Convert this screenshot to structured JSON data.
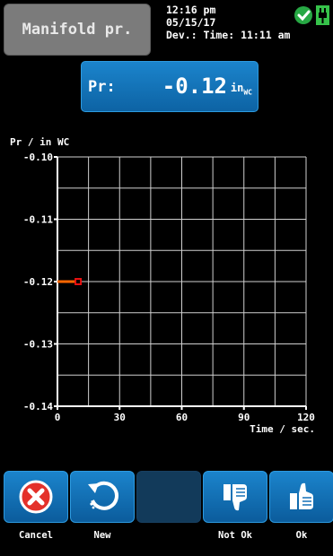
{
  "header": {
    "title": "Manifold pr.",
    "time": "12:16 pm",
    "date": "05/15/17",
    "dev_time": "Dev.: Time: 11:11 am"
  },
  "reading": {
    "label": "Pr:",
    "value": "-0.12",
    "unit_main": "in",
    "unit_sub": "WC"
  },
  "chart_data": {
    "type": "line",
    "ylabel": "Pr / in WC",
    "xlabel": "Time / sec.",
    "xlim": [
      0,
      120
    ],
    "ylim": [
      -0.14,
      -0.1
    ],
    "x_ticks": [
      "0",
      "30",
      "60",
      "90",
      "120"
    ],
    "y_ticks": [
      "-0.10",
      "-0.11",
      "-0.12",
      "-0.13",
      "-0.14"
    ],
    "grid": true,
    "series": [
      {
        "color": "#ff6600",
        "x": [
          0,
          10
        ],
        "y": [
          -0.12,
          -0.12
        ]
      }
    ]
  },
  "buttons": {
    "cancel": "Cancel",
    "new": "New",
    "not_ok": "Not Ok",
    "ok": "Ok"
  },
  "icons": {
    "status_ok": "check-circle-icon",
    "power": "plug-icon",
    "cancel": "x-circle-icon",
    "new": "refresh-icon",
    "not_ok": "thumbs-down-icon",
    "ok": "thumbs-up-icon"
  },
  "colors": {
    "accent": "#1570b8",
    "ok_green": "#2bb24c",
    "series": "#ff6600"
  }
}
